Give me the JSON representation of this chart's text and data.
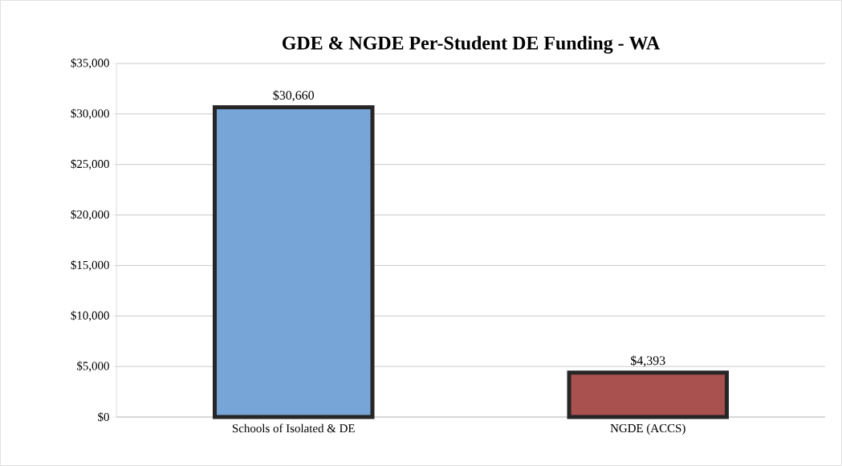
{
  "chart_data": {
    "type": "bar",
    "title": "GDE & NGDE Per-Student DE Funding - WA",
    "categories": [
      "Schools of Isolated & DE",
      "NGDE (ACCS)"
    ],
    "values": [
      30660,
      4393
    ],
    "colors": [
      "#78a5d8",
      "#a8514f"
    ],
    "value_labels": [
      "$30,660",
      "$4,393"
    ],
    "ylim": [
      0,
      35000
    ],
    "yticks": [
      {
        "value": 0,
        "label": "$0"
      },
      {
        "value": 5000,
        "label": "$5,000"
      },
      {
        "value": 10000,
        "label": "$10,000"
      },
      {
        "value": 15000,
        "label": "$15,000"
      },
      {
        "value": 20000,
        "label": "$20,000"
      },
      {
        "value": 25000,
        "label": "$25,000"
      },
      {
        "value": 30000,
        "label": "$30,000"
      },
      {
        "value": 35000,
        "label": "$35,000"
      }
    ],
    "grid": "y"
  }
}
